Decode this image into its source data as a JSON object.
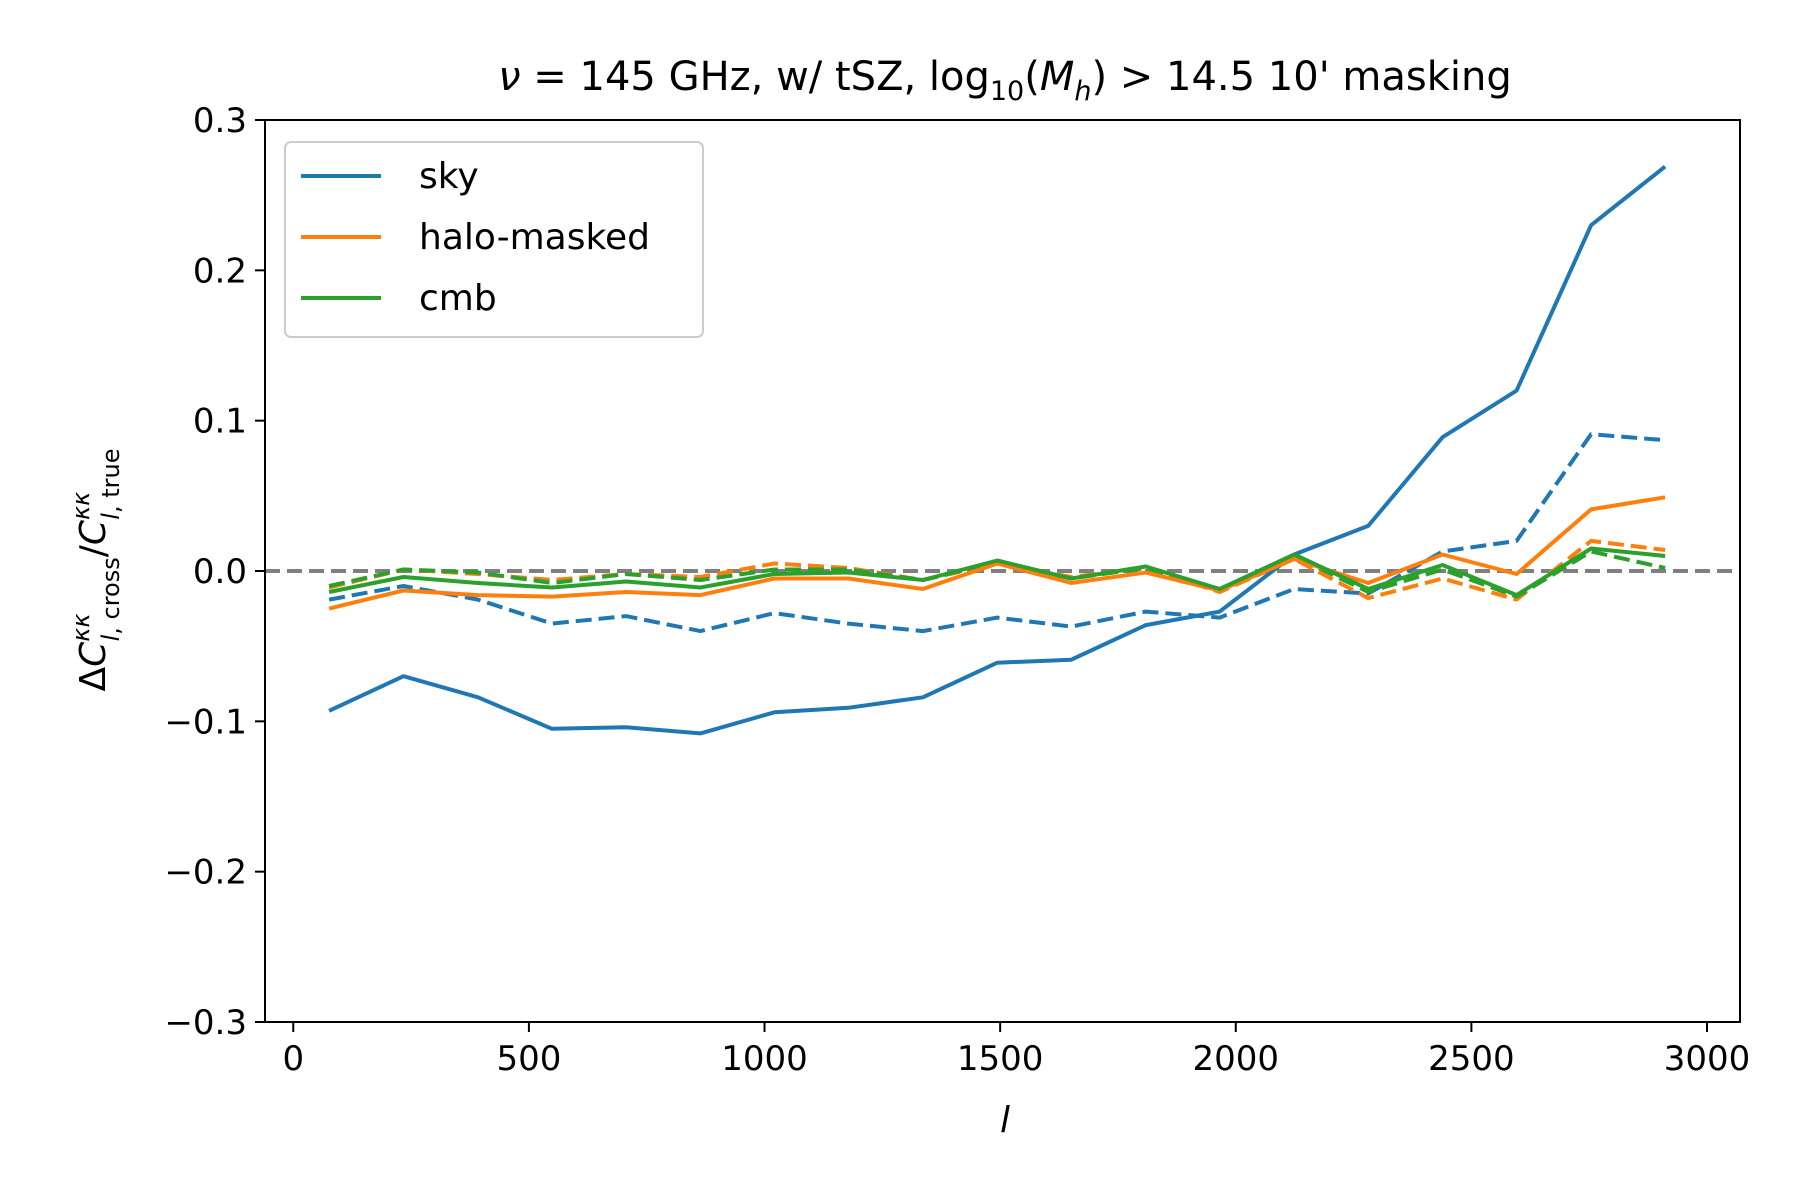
{
  "chart_data": {
    "type": "line",
    "title": "ν = 145 GHz, w/ tSZ, log₁₀(Mₕ) > 14.5 10' masking",
    "xlabel": "l",
    "ylabel": "ΔC^κκ_l,cross / C^κκ_l,true",
    "xlim": [
      -60,
      3070
    ],
    "ylim": [
      -0.3,
      0.3
    ],
    "xticks": [
      0,
      500,
      1000,
      1500,
      2000,
      2500,
      3000
    ],
    "xtick_labels": [
      "0",
      "500",
      "1000",
      "1500",
      "2000",
      "2500",
      "3000"
    ],
    "yticks": [
      -0.3,
      -0.2,
      -0.1,
      0.0,
      0.1,
      0.2,
      0.3
    ],
    "ytick_labels": [
      "−0.3",
      "−0.2",
      "−0.1",
      "0.0",
      "0.1",
      "0.2",
      "0.3"
    ],
    "grid": false,
    "legend_position": "top-left",
    "reference_line": {
      "y": 0.0,
      "color": "#808080",
      "style": "dashed"
    },
    "x": [
      76,
      234,
      392,
      549,
      706,
      864,
      1021,
      1178,
      1336,
      1494,
      1651,
      1809,
      1966,
      2124,
      2281,
      2439,
      2596,
      2754,
      2911
    ],
    "series": [
      {
        "name": "sky",
        "color": "#1f77b4",
        "style": "solid",
        "values": [
          -0.093,
          -0.07,
          -0.084,
          -0.105,
          -0.104,
          -0.108,
          -0.094,
          -0.091,
          -0.084,
          -0.061,
          -0.059,
          -0.036,
          -0.027,
          0.011,
          0.03,
          0.089,
          0.12,
          0.23,
          0.269
        ]
      },
      {
        "name": "halo-masked",
        "color": "#ff7f0e",
        "style": "solid",
        "values": [
          -0.025,
          -0.013,
          -0.016,
          -0.017,
          -0.014,
          -0.016,
          -0.005,
          -0.005,
          -0.012,
          0.005,
          -0.008,
          -0.001,
          -0.013,
          0.008,
          -0.008,
          0.011,
          -0.002,
          0.041,
          0.049
        ]
      },
      {
        "name": "cmb",
        "color": "#2ca02c",
        "style": "solid",
        "values": [
          -0.014,
          -0.004,
          -0.008,
          -0.011,
          -0.007,
          -0.011,
          -0.002,
          -0.001,
          -0.006,
          0.007,
          -0.005,
          0.003,
          -0.012,
          0.011,
          -0.012,
          0.004,
          -0.016,
          0.015,
          0.01
        ]
      },
      {
        "color": "#1f77b4",
        "style": "dashed",
        "values": [
          -0.019,
          -0.01,
          -0.019,
          -0.035,
          -0.03,
          -0.04,
          -0.028,
          -0.035,
          -0.04,
          -0.031,
          -0.037,
          -0.027,
          -0.031,
          -0.012,
          -0.015,
          0.013,
          0.02,
          0.091,
          0.087
        ]
      },
      {
        "color": "#ff7f0e",
        "style": "dashed",
        "values": [
          -0.011,
          0.001,
          -0.002,
          -0.006,
          -0.002,
          -0.004,
          0.005,
          0.002,
          -0.006,
          0.005,
          -0.004,
          0.002,
          -0.014,
          0.008,
          -0.018,
          -0.005,
          -0.019,
          0.02,
          0.014
        ]
      },
      {
        "color": "#2ca02c",
        "style": "dashed",
        "values": [
          -0.01,
          0.001,
          -0.001,
          -0.008,
          -0.002,
          -0.006,
          0.001,
          0.001,
          -0.006,
          0.006,
          -0.005,
          0.002,
          -0.012,
          0.01,
          -0.014,
          0.001,
          -0.017,
          0.013,
          0.002
        ]
      }
    ]
  }
}
